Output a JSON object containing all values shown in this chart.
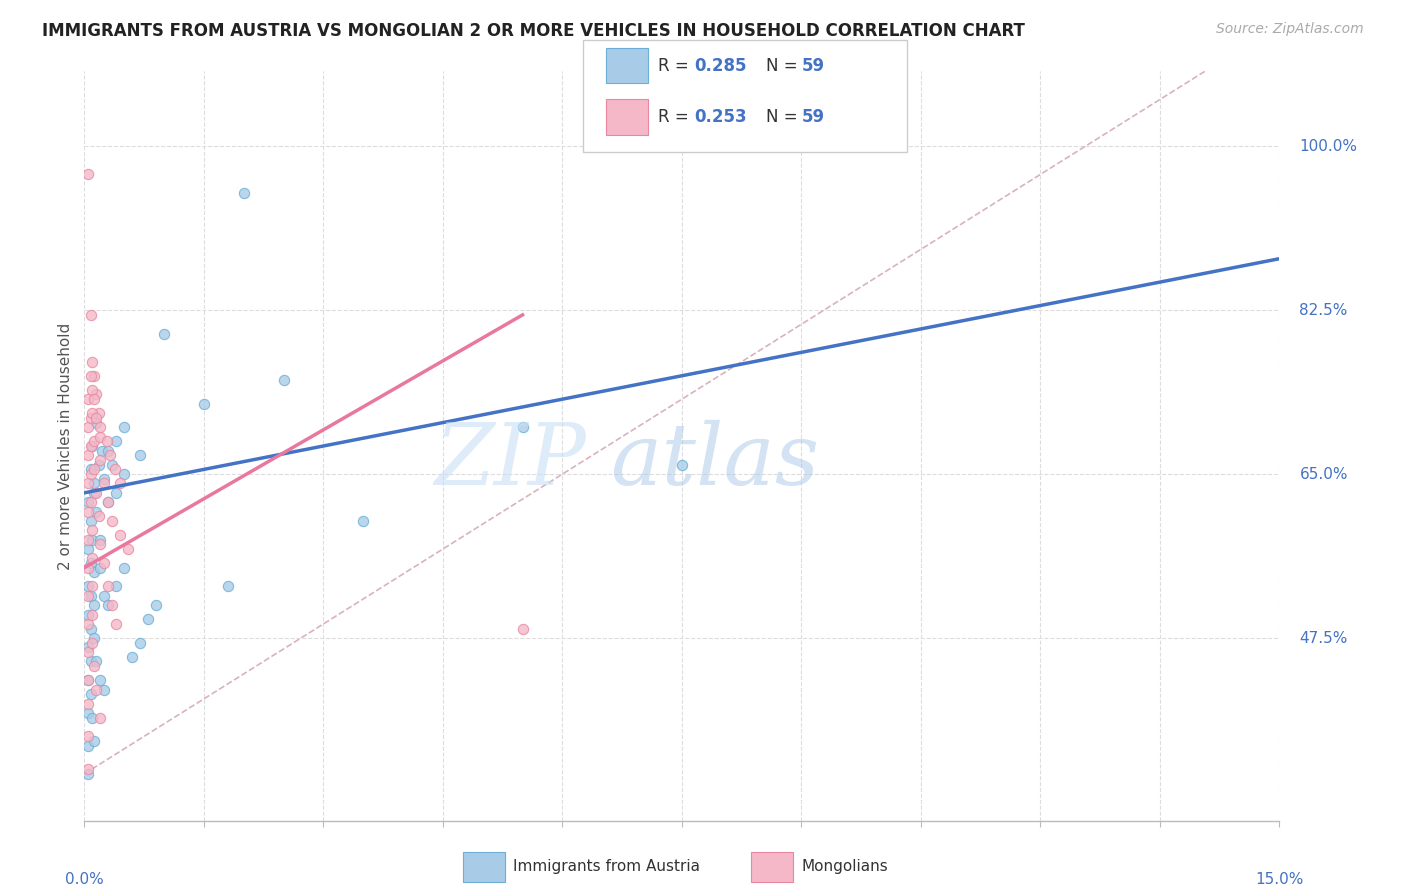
{
  "title": "IMMIGRANTS FROM AUSTRIA VS MONGOLIAN 2 OR MORE VEHICLES IN HOUSEHOLD CORRELATION CHART",
  "source": "Source: ZipAtlas.com",
  "ylabel": "2 or more Vehicles in Household",
  "ylabel_right_ticks": [
    47.5,
    65.0,
    82.5,
    100.0
  ],
  "xlim": [
    0.0,
    15.0
  ],
  "ylim": [
    28.0,
    108.0
  ],
  "legend_bottom1": "Immigrants from Austria",
  "legend_bottom2": "Mongolians",
  "R_blue": 0.285,
  "N_blue": 59,
  "R_pink": 0.253,
  "N_pink": 59,
  "blue_scatter_color": "#a8cce8",
  "blue_edge_color": "#6baed6",
  "pink_scatter_color": "#f4b8c8",
  "pink_edge_color": "#e888a0",
  "blue_line_color": "#4472c4",
  "pink_line_color": "#e878a0",
  "scatter_alpha": 0.8,
  "scatter_size": 55,
  "blue_points": [
    [
      0.05,
      62.0
    ],
    [
      0.08,
      65.5
    ],
    [
      0.1,
      68.0
    ],
    [
      0.12,
      64.0
    ],
    [
      0.15,
      70.5
    ],
    [
      0.05,
      57.0
    ],
    [
      0.08,
      60.0
    ],
    [
      0.12,
      63.0
    ],
    [
      0.18,
      66.0
    ],
    [
      0.22,
      67.5
    ],
    [
      0.05,
      53.0
    ],
    [
      0.08,
      55.5
    ],
    [
      0.1,
      58.0
    ],
    [
      0.15,
      61.0
    ],
    [
      0.25,
      64.5
    ],
    [
      0.05,
      50.0
    ],
    [
      0.08,
      52.0
    ],
    [
      0.12,
      54.5
    ],
    [
      0.2,
      58.0
    ],
    [
      0.3,
      62.0
    ],
    [
      0.05,
      46.5
    ],
    [
      0.08,
      48.5
    ],
    [
      0.12,
      51.0
    ],
    [
      0.2,
      55.0
    ],
    [
      0.4,
      63.0
    ],
    [
      0.05,
      43.0
    ],
    [
      0.08,
      45.0
    ],
    [
      0.12,
      47.5
    ],
    [
      0.25,
      52.0
    ],
    [
      0.5,
      65.0
    ],
    [
      0.05,
      39.5
    ],
    [
      0.08,
      41.5
    ],
    [
      0.15,
      45.0
    ],
    [
      0.3,
      51.0
    ],
    [
      0.7,
      67.0
    ],
    [
      0.05,
      36.0
    ],
    [
      0.1,
      39.0
    ],
    [
      0.2,
      43.0
    ],
    [
      0.4,
      53.0
    ],
    [
      0.05,
      33.0
    ],
    [
      0.12,
      36.5
    ],
    [
      0.25,
      42.0
    ],
    [
      0.5,
      55.0
    ],
    [
      0.3,
      67.5
    ],
    [
      0.35,
      66.0
    ],
    [
      0.4,
      68.5
    ],
    [
      0.5,
      70.0
    ],
    [
      2.0,
      95.0
    ],
    [
      2.5,
      75.0
    ],
    [
      3.5,
      60.0
    ],
    [
      5.5,
      70.0
    ],
    [
      7.5,
      66.0
    ],
    [
      1.0,
      80.0
    ],
    [
      1.5,
      72.5
    ],
    [
      1.8,
      53.0
    ],
    [
      0.6,
      45.5
    ],
    [
      0.7,
      47.0
    ],
    [
      0.8,
      49.5
    ],
    [
      0.9,
      51.0
    ]
  ],
  "pink_points": [
    [
      0.05,
      97.0
    ],
    [
      0.08,
      82.0
    ],
    [
      0.1,
      77.0
    ],
    [
      0.12,
      75.5
    ],
    [
      0.15,
      73.5
    ],
    [
      0.05,
      73.0
    ],
    [
      0.08,
      75.5
    ],
    [
      0.1,
      74.0
    ],
    [
      0.12,
      73.0
    ],
    [
      0.18,
      71.5
    ],
    [
      0.05,
      70.0
    ],
    [
      0.08,
      71.0
    ],
    [
      0.1,
      71.5
    ],
    [
      0.15,
      71.0
    ],
    [
      0.2,
      70.0
    ],
    [
      0.05,
      67.0
    ],
    [
      0.08,
      68.0
    ],
    [
      0.12,
      68.5
    ],
    [
      0.2,
      69.0
    ],
    [
      0.28,
      68.5
    ],
    [
      0.05,
      64.0
    ],
    [
      0.08,
      65.0
    ],
    [
      0.12,
      65.5
    ],
    [
      0.2,
      66.5
    ],
    [
      0.32,
      67.0
    ],
    [
      0.05,
      61.0
    ],
    [
      0.08,
      62.0
    ],
    [
      0.15,
      63.0
    ],
    [
      0.25,
      64.0
    ],
    [
      0.38,
      65.5
    ],
    [
      0.05,
      58.0
    ],
    [
      0.1,
      59.0
    ],
    [
      0.18,
      60.5
    ],
    [
      0.3,
      62.0
    ],
    [
      0.45,
      64.0
    ],
    [
      0.05,
      55.0
    ],
    [
      0.1,
      56.0
    ],
    [
      0.2,
      57.5
    ],
    [
      0.35,
      60.0
    ],
    [
      0.05,
      52.0
    ],
    [
      0.1,
      53.0
    ],
    [
      0.25,
      55.5
    ],
    [
      0.45,
      58.5
    ],
    [
      0.05,
      49.0
    ],
    [
      0.1,
      50.0
    ],
    [
      0.3,
      53.0
    ],
    [
      0.55,
      57.0
    ],
    [
      0.05,
      46.0
    ],
    [
      0.1,
      47.0
    ],
    [
      0.35,
      51.0
    ],
    [
      0.05,
      43.0
    ],
    [
      0.12,
      44.5
    ],
    [
      0.4,
      49.0
    ],
    [
      0.05,
      40.5
    ],
    [
      0.15,
      42.0
    ],
    [
      0.05,
      37.0
    ],
    [
      0.2,
      39.0
    ],
    [
      0.05,
      33.5
    ],
    [
      5.5,
      48.5
    ]
  ],
  "watermark_zip": "ZIP",
  "watermark_atlas": "atlas",
  "grid_color": "#dddddd",
  "background_color": "#ffffff",
  "ref_line_color": "#d0a0a8"
}
